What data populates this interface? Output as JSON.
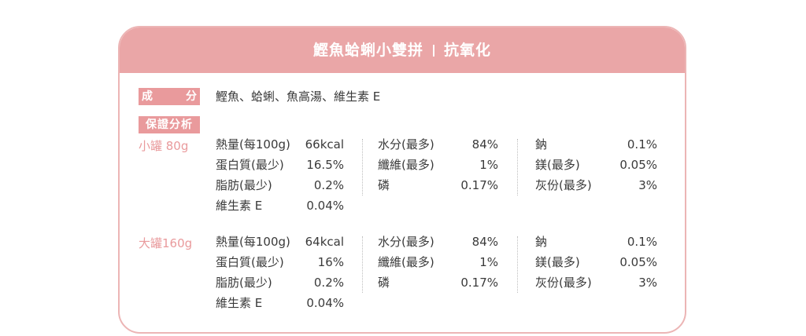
{
  "header": {
    "title_left": "鰹魚蛤蜊小雙拼",
    "title_right": "抗氧化"
  },
  "ingredients": {
    "label_left": "成",
    "label_right": "分",
    "text": "鰹魚、蛤蜊、魚高湯、維生素 E"
  },
  "analysis_label": "保證分析",
  "sections": [
    {
      "size": "小罐 80g",
      "rows": [
        {
          "n1": "熱量(每100g)",
          "v1": "66kcal",
          "n2": "水分(最多)",
          "v2": "84%",
          "n3": "鈉",
          "v3": "0.1%"
        },
        {
          "n1": "蛋白質(最少)",
          "v1": "16.5%",
          "n2": "纖維(最多)",
          "v2": "1%",
          "n3": "鎂(最多)",
          "v3": "0.05%"
        },
        {
          "n1": "脂肪(最少)",
          "v1": "0.2%",
          "n2": "磷",
          "v2": "0.17%",
          "n3": "灰份(最多)",
          "v3": "3%"
        },
        {
          "n1": "維生素 E",
          "v1": "0.04%"
        }
      ]
    },
    {
      "size": "大罐160g",
      "rows": [
        {
          "n1": "熱量(每100g)",
          "v1": "64kcal",
          "n2": "水分(最多)",
          "v2": "84%",
          "n3": "鈉",
          "v3": "0.1%"
        },
        {
          "n1": "蛋白質(最少)",
          "v1": "16%",
          "n2": "纖維(最多)",
          "v2": "1%",
          "n3": "鎂(最多)",
          "v3": "0.05%"
        },
        {
          "n1": "脂肪(最少)",
          "v1": "0.2%",
          "n2": "磷",
          "v2": "0.17%",
          "n3": "灰份(最多)",
          "v3": "3%"
        },
        {
          "n1": "維生素 E",
          "v1": "0.04%"
        }
      ]
    }
  ],
  "colors": {
    "header_bg": "#eaa6a7",
    "tag_bg": "#e99a9c",
    "border": "#ecb5b5",
    "text": "#3a3a3a"
  }
}
